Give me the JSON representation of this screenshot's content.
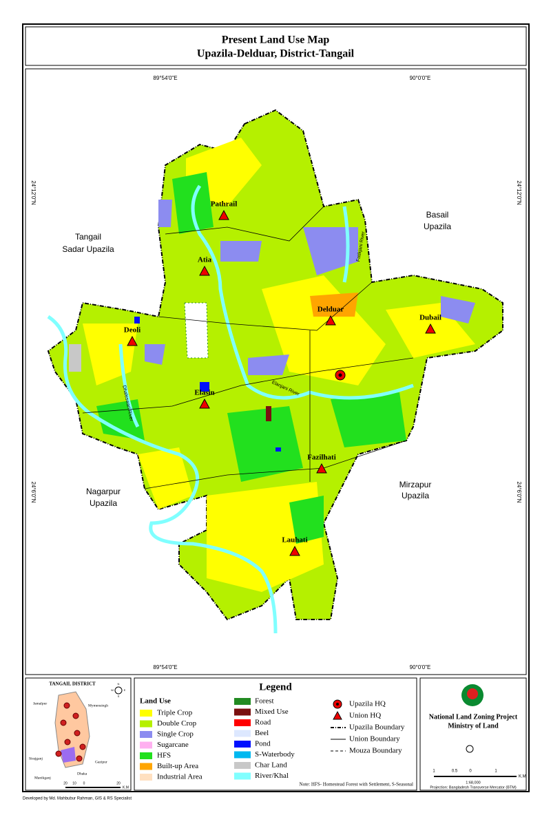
{
  "header": {
    "title": "Present Land Use Map",
    "subtitle": "Upazila-Delduar, District-Tangail"
  },
  "map": {
    "longitudes": [
      "89°54'0\"E",
      "90°0'0\"E"
    ],
    "latitudes": [
      "24°12'0\"N",
      "24°6'0\"N"
    ],
    "neighbors": [
      "Tangail",
      "Sadar Upazila",
      "Basail",
      "Upazila",
      "Nagarpur",
      "Upazila",
      "Mirzapur",
      "Upazila"
    ],
    "unions": [
      "Pathrail",
      "Atia",
      "Delduar",
      "Dubail",
      "Deoli",
      "Elasin",
      "Fazilhati",
      "Lauhati"
    ],
    "rivers": [
      "Dhaleswari River",
      "Elanjani River",
      "Fatikjani River"
    ]
  },
  "inset": {
    "title": "TANGAIL DISTRICT",
    "places": [
      "Jamalpur",
      "Mymensingh",
      "Sirajganj",
      "Gazipur",
      "Manikganj",
      "Dhaka"
    ],
    "scale": [
      "20",
      "10",
      "0",
      "20"
    ],
    "unit": "K.M",
    "compass": [
      "N",
      "S",
      "E",
      "W"
    ]
  },
  "legend": {
    "title": "Legend",
    "land_use_title": "Land Use",
    "land_use": [
      {
        "name": "Triple Crop",
        "color": "#ffff00"
      },
      {
        "name": "Double Crop",
        "color": "#b5f000"
      },
      {
        "name": "Single Crop",
        "color": "#8c8cf0"
      },
      {
        "name": "Sugarcane",
        "color": "#ffb0f0"
      },
      {
        "name": "HFS",
        "color": "#22e01e"
      },
      {
        "name": "Built-up Area",
        "color": "#ffa500"
      },
      {
        "name": "Industrial Area",
        "color": "#ffe0c0"
      }
    ],
    "other_use": [
      {
        "name": "Forest",
        "color": "#228b22"
      },
      {
        "name": "Mixed Use",
        "color": "#7a1010"
      },
      {
        "name": "Road",
        "color": "#ff0000"
      },
      {
        "name": "Beel",
        "color": "#dde8ff"
      },
      {
        "name": "Pond",
        "color": "#0010ff"
      },
      {
        "name": "S-Waterbody",
        "color": "#00b8f0"
      },
      {
        "name": "Char Land",
        "color": "#c8c8c8"
      },
      {
        "name": "River/Khal",
        "color": "#80ffff"
      }
    ],
    "symbols": [
      "Upazila HQ",
      "Union HQ",
      "Upazila Boundary",
      "Union Boundary",
      "Mouza Boundary"
    ],
    "note": "Note: HFS- Homestead Forest with Settlement, S-Seasonal"
  },
  "credits": {
    "project": "National Land Zoning Project",
    "ministry": "Ministry of Land",
    "scale": [
      "1",
      "0.5",
      "0",
      "1"
    ],
    "unit": "K.M",
    "ratio": "1:68,000",
    "projection": "Projection: Bangladesh Transverse Mercator (BTM)",
    "developer": "Developed by Md. Mahbubur Rahman, GIS & RS Specialist"
  }
}
